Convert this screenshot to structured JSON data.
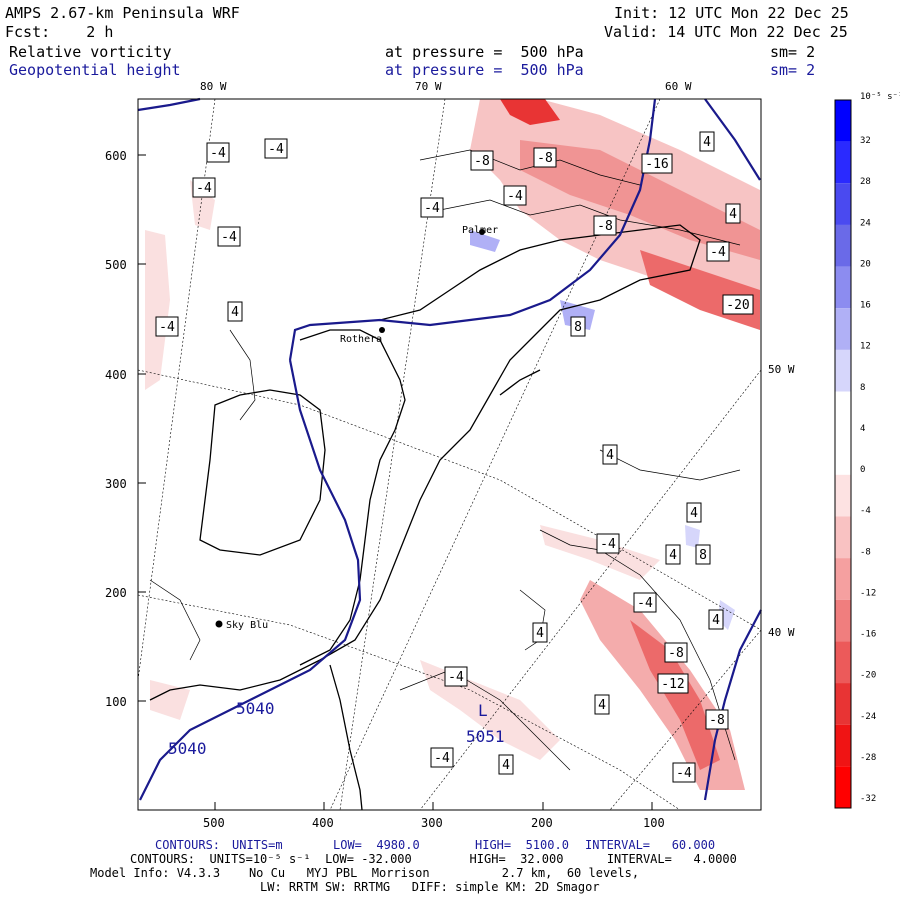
{
  "header": {
    "model": "AMPS 2.67-km Peninsula WRF",
    "init": "Init: 12 UTC Mon 22 Dec 25",
    "fcst": "Fcst:    2 h",
    "valid": "Valid: 14 UTC Mon 22 Dec 25",
    "field1": "Relative vorticity",
    "field1_level": "at pressure =  500 hPa",
    "field1_sm": "sm= 2",
    "field2": "Geopotential height",
    "field2_level": "at pressure =  500 hPa",
    "field2_sm": "sm= 2"
  },
  "lon_labels_top": [
    "80 W",
    "70 W",
    "60 W"
  ],
  "lon_labels_right": [
    "50 W",
    "40 W"
  ],
  "y_ticks": [
    "600",
    "500",
    "400",
    "300",
    "200",
    "100"
  ],
  "x_ticks": [
    "500",
    "400",
    "300",
    "200",
    "100"
  ],
  "stations": [
    "Palmer",
    "Rothera",
    "Sky Blu"
  ],
  "height_labels": [
    "5040",
    "5040",
    "5051"
  ],
  "low_marker": "L",
  "contour_labels": [
    "-4",
    "-4",
    "-4",
    "-4",
    "-4",
    "4",
    "-4",
    "-8",
    "-8",
    "-16",
    "4",
    "4",
    "-4",
    "-8",
    "-4",
    "-20",
    "8",
    "4",
    "4",
    "4",
    "8",
    "-4",
    "-4",
    "4",
    "4",
    "-8",
    "-12",
    "-4",
    "4",
    "-8",
    "-4",
    "4",
    "-4"
  ],
  "colorbar": {
    "unit": "10⁻⁵ s⁻¹",
    "labels": [
      "32",
      "28",
      "24",
      "20",
      "16",
      "12",
      "8",
      "4",
      "0",
      "-4",
      "-8",
      "-12",
      "-16",
      "-20",
      "-24",
      "-28",
      "-32"
    ],
    "colors": [
      "#0000ff",
      "#2a2aff",
      "#4a4af0",
      "#6a6ae8",
      "#8c8cf0",
      "#b0b0f6",
      "#d6d6fb",
      "#ffffff",
      "#ffffff",
      "#fde2e2",
      "#f9c2c2",
      "#f5a0a0",
      "#f07e7e",
      "#ec5a5a",
      "#e83434",
      "#f01414",
      "#ff0000"
    ]
  },
  "footer": {
    "c1_label": "CONTOURS:",
    "c1_units": "UNITS=m",
    "c1_low": "LOW=  4980.0",
    "c1_high": "HIGH=  5100.0",
    "c1_interval": "INTERVAL=   60.000",
    "c2": "CONTOURS:  UNITS=10⁻⁵ s⁻¹  LOW= -32.000        HIGH=  32.000      INTERVAL=   4.0000",
    "info1": "Model Info: V4.3.3    No Cu   MYJ PBL  Morrison          2.7 km,  60 levels,",
    "info2": "LW: RRTM SW: RRTMG   DIFF: simple KM: 2D Smagor"
  }
}
